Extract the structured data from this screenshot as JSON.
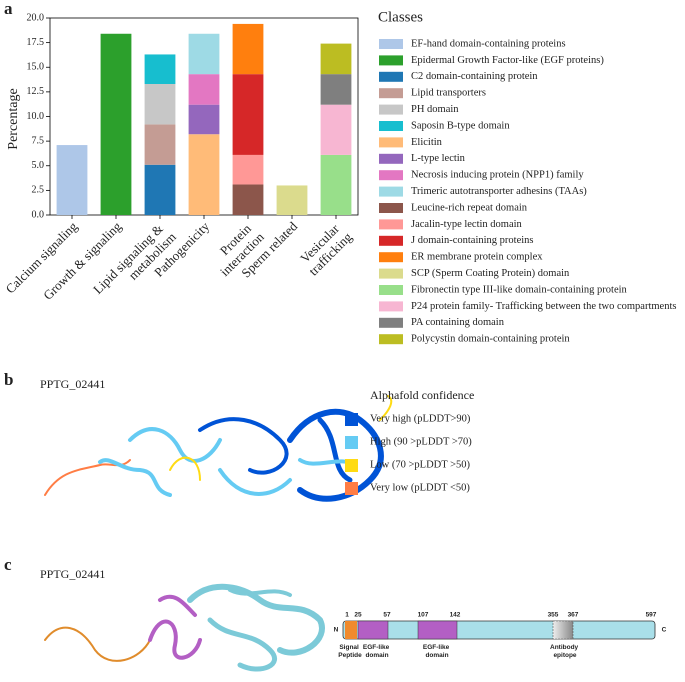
{
  "chart_data": {
    "type": "stacked_bar",
    "panel_label": "a",
    "ylabel": "Percentage",
    "legend_title": "Classes",
    "categories": [
      "Calcium signaling",
      "Growth & signaling",
      "Lipid signaling & metabolism",
      "Pathogenicity",
      "Protein interaction",
      "Sperm related",
      "Vesicular trafficking"
    ],
    "ylim": [
      0,
      20
    ],
    "yticks": [
      {
        "value": 0,
        "label": "0.0"
      },
      {
        "value": 2.5,
        "label": "2.5"
      },
      {
        "value": 5,
        "label": "5.0"
      },
      {
        "value": 7.5,
        "label": "7.5"
      },
      {
        "value": 10,
        "label": "10.0"
      },
      {
        "value": 12.5,
        "label": "12.5"
      },
      {
        "value": 15,
        "label": "15.0"
      },
      {
        "value": 17.5,
        "label": "17.5"
      },
      {
        "value": 20,
        "label": "20.0"
      }
    ],
    "series": [
      {
        "name": "EF-hand domain-containing proteins",
        "color": "#aec7e8",
        "values": [
          7.1,
          null,
          null,
          null,
          null,
          null,
          null
        ]
      },
      {
        "name": "Epidermal Growth Factor-like (EGF proteins)",
        "color": "#2ca02c",
        "values": [
          null,
          18.4,
          null,
          null,
          null,
          null,
          null
        ]
      },
      {
        "name": "C2 domain-containing protein",
        "color": "#1f77b4",
        "values": [
          null,
          null,
          5.1,
          null,
          null,
          null,
          null
        ]
      },
      {
        "name": "Lipid transporters",
        "color": "#c49c94",
        "values": [
          null,
          null,
          4.1,
          null,
          null,
          null,
          null
        ]
      },
      {
        "name": "PH domain",
        "color": "#c7c7c7",
        "values": [
          null,
          null,
          4.1,
          null,
          null,
          null,
          null
        ]
      },
      {
        "name": "Saposin B-type domain",
        "color": "#17becf",
        "values": [
          null,
          null,
          3.0,
          null,
          null,
          null,
          null
        ]
      },
      {
        "name": "Elicitin",
        "color": "#ffbb78",
        "values": [
          null,
          null,
          null,
          8.2,
          null,
          null,
          null
        ]
      },
      {
        "name": "L-type lectin",
        "color": "#9467bd",
        "values": [
          null,
          null,
          null,
          3.0,
          null,
          null,
          null
        ]
      },
      {
        "name": "Necrosis inducing protein (NPP1) family",
        "color": "#e377c2",
        "values": [
          null,
          null,
          null,
          3.1,
          null,
          null,
          null
        ]
      },
      {
        "name": "Trimeric autotransporter adhesins (TAAs)",
        "color": "#9edae5",
        "values": [
          null,
          null,
          null,
          4.1,
          null,
          null,
          null
        ]
      },
      {
        "name": "Leucine-rich repeat domain",
        "color": "#8c564b",
        "values": [
          null,
          null,
          null,
          null,
          3.1,
          null,
          null
        ]
      },
      {
        "name": "Jacalin-type lectin domain",
        "color": "#ff9896",
        "values": [
          null,
          null,
          null,
          null,
          3.0,
          null,
          null
        ]
      },
      {
        "name": "J domain-containing proteins",
        "color": "#d62728",
        "values": [
          null,
          null,
          null,
          null,
          8.2,
          null,
          null
        ]
      },
      {
        "name": "ER membrane protein complex",
        "color": "#ff7f0e",
        "values": [
          null,
          null,
          null,
          null,
          5.1,
          null,
          null
        ]
      },
      {
        "name": "SCP (Sperm Coating Protein) domain",
        "color": "#dbdb8d",
        "values": [
          null,
          null,
          null,
          null,
          null,
          3.0,
          null
        ]
      },
      {
        "name": "Fibronectin type III-like domain-containing protein",
        "color": "#98df8a",
        "values": [
          null,
          null,
          null,
          null,
          null,
          null,
          6.1
        ]
      },
      {
        "name": "P24 protein family- Trafficking between the two compartments",
        "color": "#f7b6d2",
        "values": [
          null,
          null,
          null,
          null,
          null,
          null,
          5.1
        ]
      },
      {
        "name": "PA containing domain",
        "color": "#7f7f7f",
        "values": [
          null,
          null,
          null,
          null,
          null,
          null,
          3.1
        ]
      },
      {
        "name": "Polycystin domain-containing protein",
        "color": "#bcbd22",
        "values": [
          null,
          null,
          null,
          null,
          null,
          null,
          3.1
        ]
      }
    ]
  },
  "panel_b": {
    "panel_label": "b",
    "protein": "PPTG_02441",
    "legend_title": "Alphafold confidence",
    "legend": [
      {
        "label": "Very high (pLDDT>90)",
        "color": "#0053d6"
      },
      {
        "label": "High (90 >pLDDT >70)",
        "color": "#65cbf3"
      },
      {
        "label": "Low (70 >pLDDT >50)",
        "color": "#ffdb13"
      },
      {
        "label": "Very low (pLDDT <50)",
        "color": "#ff7d45"
      }
    ]
  },
  "panel_c": {
    "panel_label": "c",
    "protein": "PPTG_02441",
    "n_term": "N",
    "c_term": "C",
    "positions": [
      1,
      25,
      57,
      107,
      142,
      355,
      367,
      597
    ],
    "regions": [
      "Signal Peptide",
      "EGF-like domain",
      "EGF-like domain",
      "Antibody epitope"
    ]
  }
}
